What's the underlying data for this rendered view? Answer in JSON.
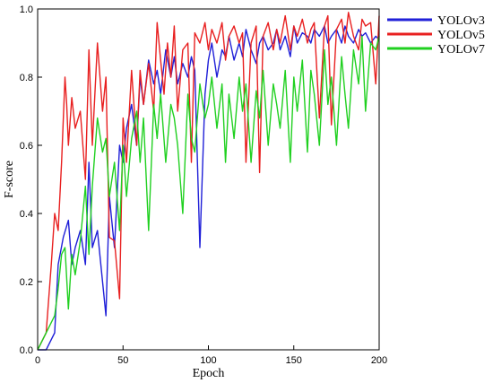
{
  "chart_data": {
    "type": "line",
    "xlabel": "Epoch",
    "ylabel": "F-score",
    "xlim": [
      0,
      200
    ],
    "ylim": [
      0.0,
      1.0
    ],
    "xticks": [
      "0",
      "50",
      "100",
      "150",
      "200"
    ],
    "yticks": [
      "0.0",
      "0.2",
      "0.4",
      "0.6",
      "0.8",
      "1.0"
    ],
    "grid": false,
    "legend": "top-right",
    "series": [
      {
        "name": "YOLOv3",
        "color": "#2020d8",
        "x": [
          0,
          5,
          10,
          12,
          15,
          18,
          20,
          22,
          25,
          28,
          30,
          32,
          35,
          38,
          40,
          42,
          45,
          48,
          50,
          52,
          55,
          58,
          60,
          62,
          65,
          68,
          70,
          72,
          75,
          78,
          80,
          82,
          85,
          88,
          90,
          92,
          95,
          98,
          100,
          102,
          105,
          108,
          110,
          112,
          115,
          118,
          120,
          122,
          125,
          128,
          130,
          132,
          135,
          138,
          140,
          142,
          145,
          148,
          150,
          152,
          155,
          158,
          160,
          162,
          165,
          168,
          170,
          172,
          175,
          178,
          180,
          182,
          185,
          188,
          190,
          192,
          195,
          198,
          200
        ],
        "y": [
          0.0,
          0.0,
          0.05,
          0.25,
          0.33,
          0.38,
          0.25,
          0.3,
          0.35,
          0.25,
          0.55,
          0.3,
          0.35,
          0.2,
          0.1,
          0.45,
          0.3,
          0.6,
          0.55,
          0.65,
          0.72,
          0.6,
          0.8,
          0.72,
          0.85,
          0.78,
          0.82,
          0.75,
          0.88,
          0.8,
          0.86,
          0.78,
          0.84,
          0.8,
          0.86,
          0.82,
          0.3,
          0.75,
          0.85,
          0.9,
          0.8,
          0.88,
          0.86,
          0.92,
          0.85,
          0.9,
          0.86,
          0.94,
          0.88,
          0.84,
          0.9,
          0.92,
          0.88,
          0.9,
          0.94,
          0.88,
          0.92,
          0.86,
          0.95,
          0.9,
          0.93,
          0.92,
          0.9,
          0.94,
          0.92,
          0.95,
          0.9,
          0.92,
          0.94,
          0.9,
          0.95,
          0.92,
          0.9,
          0.94,
          0.92,
          0.93,
          0.9,
          0.92,
          0.91
        ]
      },
      {
        "name": "YOLOv5",
        "color": "#e82020",
        "x": [
          0,
          5,
          8,
          10,
          12,
          14,
          16,
          17,
          18,
          20,
          22,
          25,
          28,
          30,
          32,
          35,
          38,
          40,
          42,
          45,
          48,
          50,
          52,
          55,
          58,
          60,
          62,
          65,
          68,
          70,
          72,
          74,
          76,
          78,
          80,
          82,
          85,
          88,
          90,
          92,
          95,
          98,
          100,
          102,
          105,
          108,
          110,
          112,
          115,
          118,
          120,
          122,
          125,
          128,
          130,
          132,
          135,
          138,
          140,
          142,
          145,
          148,
          150,
          152,
          155,
          158,
          160,
          162,
          165,
          168,
          170,
          172,
          175,
          178,
          180,
          182,
          185,
          188,
          190,
          192,
          195,
          198,
          200
        ],
        "y": [
          0.0,
          0.05,
          0.25,
          0.4,
          0.35,
          0.55,
          0.8,
          0.72,
          0.6,
          0.74,
          0.65,
          0.7,
          0.5,
          0.88,
          0.6,
          0.9,
          0.7,
          0.8,
          0.33,
          0.32,
          0.15,
          0.68,
          0.55,
          0.82,
          0.6,
          0.82,
          0.72,
          0.84,
          0.7,
          0.96,
          0.85,
          0.75,
          0.9,
          0.8,
          0.95,
          0.7,
          0.88,
          0.9,
          0.55,
          0.93,
          0.9,
          0.96,
          0.88,
          0.94,
          0.9,
          0.96,
          0.85,
          0.92,
          0.95,
          0.9,
          0.93,
          0.55,
          0.9,
          0.95,
          0.52,
          0.92,
          0.96,
          0.88,
          0.94,
          0.9,
          0.98,
          0.88,
          0.95,
          0.92,
          0.97,
          0.9,
          0.94,
          0.96,
          0.68,
          0.95,
          0.98,
          0.66,
          0.94,
          0.97,
          0.9,
          0.99,
          0.92,
          0.88,
          0.97,
          0.95,
          0.96,
          0.78,
          0.98
        ]
      },
      {
        "name": "YOLOv7",
        "color": "#20d020",
        "x": [
          0,
          5,
          8,
          10,
          12,
          14,
          16,
          18,
          20,
          22,
          25,
          28,
          30,
          32,
          35,
          38,
          40,
          42,
          45,
          48,
          50,
          52,
          55,
          58,
          60,
          62,
          65,
          68,
          70,
          72,
          75,
          78,
          80,
          82,
          85,
          88,
          90,
          92,
          95,
          98,
          100,
          102,
          105,
          108,
          110,
          112,
          115,
          118,
          120,
          122,
          125,
          128,
          130,
          132,
          135,
          138,
          140,
          142,
          145,
          148,
          150,
          152,
          155,
          158,
          160,
          162,
          165,
          168,
          170,
          172,
          175,
          178,
          180,
          182,
          185,
          188,
          190,
          192,
          195,
          198,
          200
        ],
        "y": [
          0.0,
          0.05,
          0.08,
          0.1,
          0.18,
          0.28,
          0.3,
          0.12,
          0.28,
          0.22,
          0.32,
          0.48,
          0.28,
          0.48,
          0.68,
          0.58,
          0.62,
          0.45,
          0.55,
          0.35,
          0.6,
          0.45,
          0.62,
          0.7,
          0.55,
          0.68,
          0.35,
          0.72,
          0.62,
          0.75,
          0.55,
          0.72,
          0.68,
          0.6,
          0.4,
          0.75,
          0.62,
          0.58,
          0.78,
          0.68,
          0.72,
          0.8,
          0.65,
          0.78,
          0.55,
          0.75,
          0.62,
          0.8,
          0.7,
          0.78,
          0.55,
          0.76,
          0.68,
          0.82,
          0.6,
          0.78,
          0.72,
          0.65,
          0.82,
          0.55,
          0.8,
          0.7,
          0.85,
          0.58,
          0.82,
          0.75,
          0.6,
          0.88,
          0.72,
          0.8,
          0.6,
          0.86,
          0.75,
          0.65,
          0.88,
          0.78,
          0.92,
          0.7,
          0.9,
          0.88,
          0.92
        ]
      }
    ]
  }
}
